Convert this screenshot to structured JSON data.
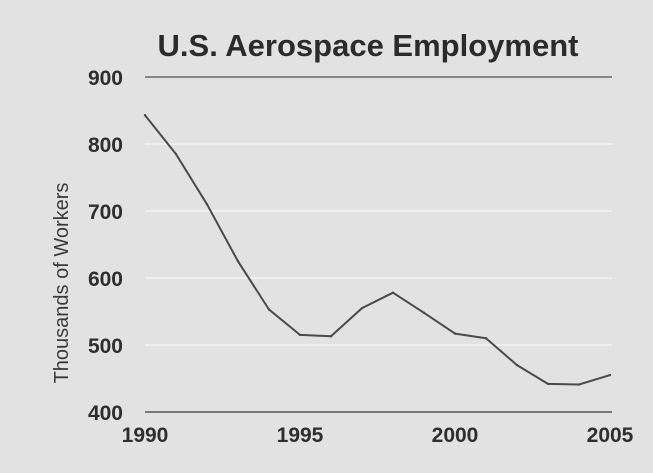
{
  "chart_data": {
    "type": "line",
    "title": "U.S. Aerospace Employment",
    "xlabel": "",
    "ylabel": "Thousands of Workers",
    "xlim": [
      1990,
      2005
    ],
    "ylim": [
      400,
      900
    ],
    "x_ticks": [
      1990,
      1995,
      2000,
      2005
    ],
    "y_ticks": [
      400,
      500,
      600,
      700,
      800,
      900
    ],
    "grid": true,
    "legend": "none",
    "line_color": "#4a4a4a",
    "series": [
      {
        "x": [
          1990,
          1991,
          1992,
          1993,
          1994,
          1995,
          1996,
          1997,
          1998,
          1999,
          2000,
          2001,
          2002,
          2003,
          2004,
          2005
        ],
        "values": [
          843,
          785,
          710,
          625,
          553,
          515,
          513,
          555,
          578,
          548,
          517,
          510,
          470,
          442,
          441,
          455
        ]
      }
    ]
  }
}
